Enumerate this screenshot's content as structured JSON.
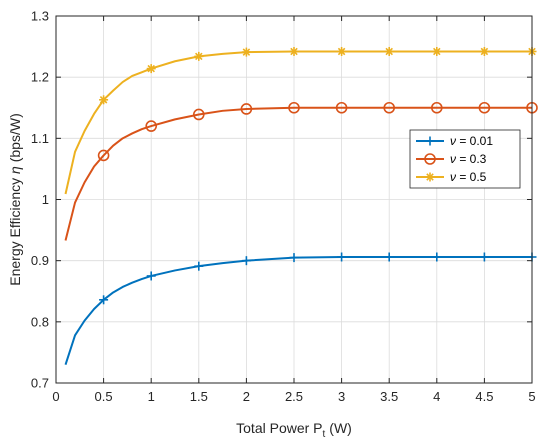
{
  "chart_data": {
    "type": "line",
    "xlabel": "Total Power P",
    "xlabel_subscript": "t",
    "xlabel_unit": "(W)",
    "ylabel_prefix": "Energy Efficiency ",
    "ylabel_symbol": "η",
    "ylabel_suffix": " (bps/W)",
    "xlim": [
      0,
      5
    ],
    "ylim": [
      0.7,
      1.3
    ],
    "xticks": [
      "0",
      "0.5",
      "1",
      "1.5",
      "2",
      "2.5",
      "3",
      "3.5",
      "4",
      "4.5",
      "5"
    ],
    "yticks": [
      "0.7",
      "0.8",
      "0.9",
      "1",
      "1.1",
      "1.2",
      "1.3"
    ],
    "grid": true,
    "legend_position": "right",
    "x": [
      0.1,
      0.2,
      0.3,
      0.4,
      0.5,
      0.6,
      0.7,
      0.8,
      0.9,
      1.0,
      1.25,
      1.5,
      1.75,
      2.0,
      2.5,
      3.0,
      3.5,
      4.0,
      4.5,
      5.0
    ],
    "marker_x": [
      0.5,
      1.0,
      1.5,
      2.0,
      2.5,
      3.0,
      3.5,
      4.0,
      4.5,
      5.0
    ],
    "series": [
      {
        "name": "ν = 0.01",
        "name_symbol": "ν",
        "name_value": " = 0.01",
        "color": "#0072BD",
        "marker": "plus",
        "values": [
          0.73,
          0.778,
          0.802,
          0.821,
          0.836,
          0.848,
          0.857,
          0.864,
          0.87,
          0.875,
          0.884,
          0.891,
          0.896,
          0.9,
          0.905,
          0.906,
          0.906,
          0.906,
          0.906,
          0.906
        ]
      },
      {
        "name": "ν = 0.3",
        "name_symbol": "ν",
        "name_value": " = 0.3",
        "color": "#D95319",
        "marker": "circle",
        "values": [
          0.933,
          0.995,
          1.028,
          1.054,
          1.072,
          1.088,
          1.1,
          1.108,
          1.115,
          1.12,
          1.131,
          1.139,
          1.145,
          1.148,
          1.15,
          1.15,
          1.15,
          1.15,
          1.15,
          1.15
        ]
      },
      {
        "name": "ν = 0.5",
        "name_symbol": "ν",
        "name_value": " = 0.5",
        "color": "#EDB120",
        "marker": "asterisk",
        "values": [
          1.009,
          1.078,
          1.112,
          1.14,
          1.163,
          1.178,
          1.192,
          1.202,
          1.208,
          1.214,
          1.226,
          1.234,
          1.238,
          1.241,
          1.242,
          1.242,
          1.242,
          1.242,
          1.242,
          1.242
        ]
      }
    ]
  }
}
